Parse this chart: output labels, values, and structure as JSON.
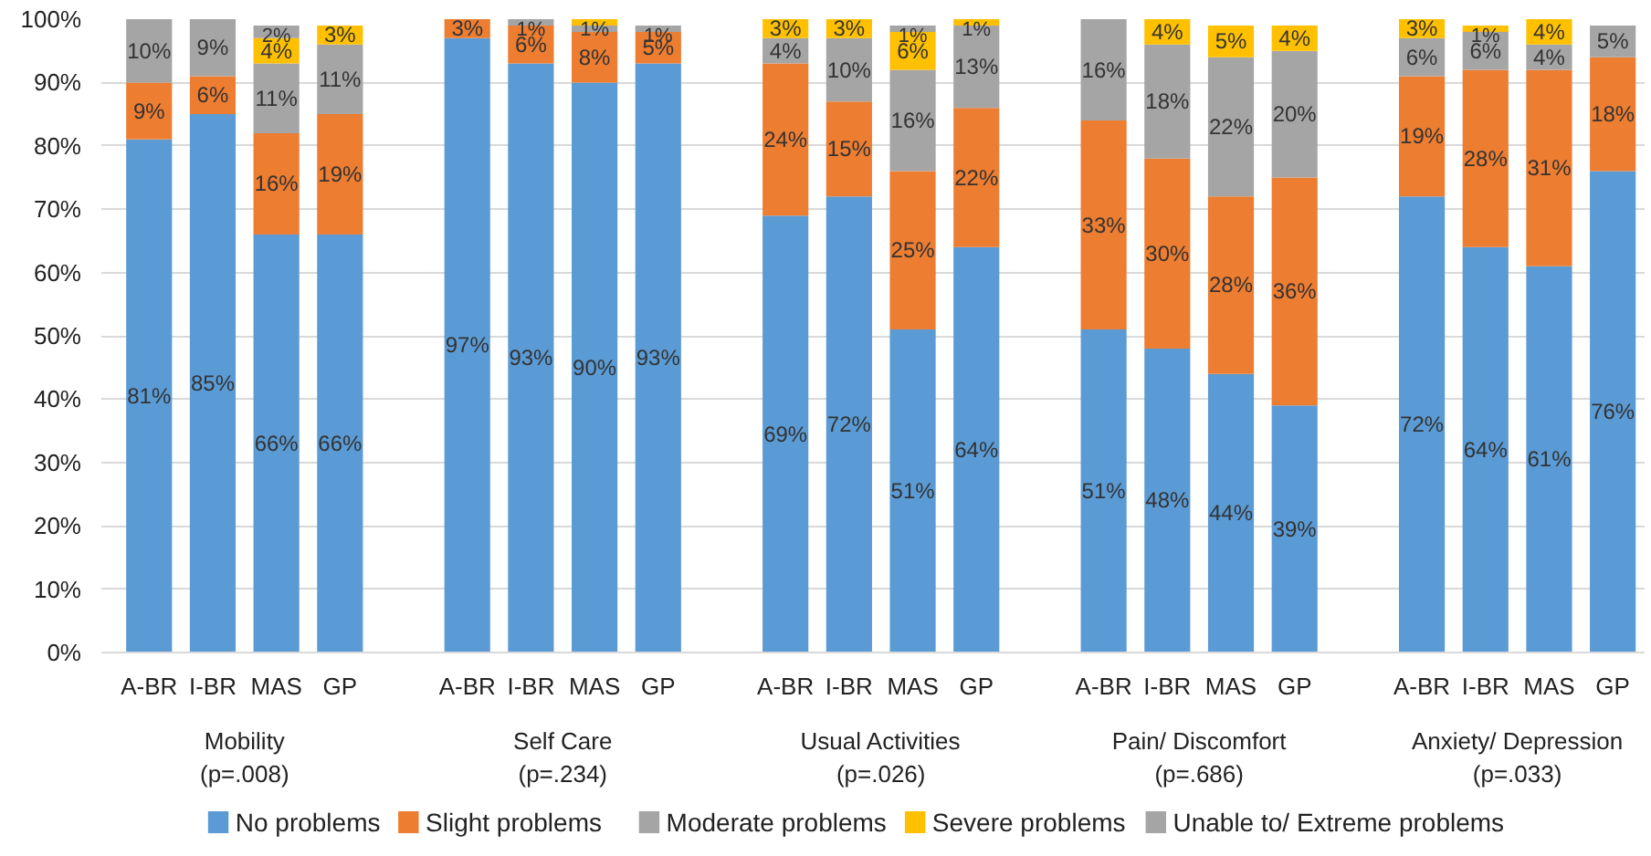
{
  "chart_data": {
    "type": "bar",
    "stacked": true,
    "categories": [
      "A-BR",
      "I-BR",
      "MAS",
      "GP",
      "A-BR",
      "I-BR",
      "MAS",
      "GP",
      "A-BR",
      "I-BR",
      "MAS",
      "GP",
      "A-BR",
      "I-BR",
      "MAS",
      "GP",
      "A-BR",
      "I-BR",
      "MAS",
      "GP"
    ],
    "annotations": [
      "Mobility\n(p=.008)",
      "Self Care\n(p=.234)",
      "Usual Activities\n(p=.026)",
      "Pain/ Discomfort\n(p=.686)",
      "Anxiety/ Depression\n(p=.033)"
    ],
    "series": [
      {
        "name": "No problems",
        "color": "#5b9bd5",
        "values": [
          81,
          85,
          66,
          66,
          97,
          93,
          90,
          93,
          69,
          72,
          51,
          64,
          51,
          48,
          44,
          39,
          72,
          64,
          61,
          76
        ],
        "value_labels": [
          "81%",
          "85%",
          "66%",
          "66%",
          "97%",
          "93%",
          "90%",
          "93%",
          "69%",
          "72%",
          "51%",
          "64%",
          "51%",
          "48%",
          "44%",
          "39%",
          "72%",
          "64%",
          "61%",
          "76%"
        ]
      },
      {
        "name": "Slight problems",
        "color": "#ed7d31",
        "values": [
          9,
          6,
          16,
          19,
          3,
          6,
          8,
          5,
          24,
          15,
          25,
          22,
          33,
          30,
          28,
          36,
          19,
          28,
          31,
          18
        ],
        "value_labels": [
          "9%",
          "6%",
          "16%",
          "19%",
          "3%",
          "6%",
          "8%",
          "5%",
          "24%",
          "15%",
          "25%",
          "22%",
          "33%",
          "30%",
          "28%",
          "36%",
          "19%",
          "28%",
          "31%",
          "18%"
        ]
      },
      {
        "name": "Moderate problems",
        "color": "#a5a5a5",
        "values": [
          10,
          9,
          11,
          11,
          0,
          1,
          1,
          1,
          4,
          10,
          16,
          13,
          16,
          18,
          22,
          20,
          6,
          6,
          4,
          5
        ],
        "value_labels": [
          "10%",
          "9%",
          "11%",
          "11%",
          null,
          "1%",
          null,
          "1%",
          "4%",
          "10%",
          "16%",
          "13%",
          "16%",
          "18%",
          "22%",
          "20%",
          "6%",
          "6%",
          "4%",
          "5%"
        ]
      },
      {
        "name": "Severe problems",
        "color": "#ffc000",
        "values": [
          0,
          0,
          4,
          3,
          0,
          0,
          1,
          0,
          3,
          3,
          6,
          1,
          0,
          4,
          5,
          4,
          3,
          1,
          4,
          0
        ],
        "value_labels": [
          null,
          null,
          "4%",
          "3%",
          null,
          null,
          "1%",
          null,
          "3%",
          "3%",
          "6%",
          "1%",
          null,
          "4%",
          "5%",
          "4%",
          "3%",
          "1%",
          "4%",
          null
        ]
      },
      {
        "name": "Unable to/ Extreme problems",
        "color": "#a5a5a5",
        "values": [
          0,
          0,
          2,
          0,
          0,
          0,
          0,
          0,
          0,
          0,
          1,
          0,
          0,
          0,
          0,
          0,
          0,
          0,
          0,
          0
        ],
        "value_labels": [
          null,
          null,
          "2%",
          null,
          null,
          null,
          null,
          null,
          null,
          null,
          "1%",
          null,
          null,
          null,
          null,
          null,
          null,
          null,
          null,
          null
        ]
      }
    ],
    "ylim": [
      0,
      100
    ],
    "yticks": [
      {
        "value": 0,
        "label": "0%"
      },
      {
        "value": 10,
        "label": "10%"
      },
      {
        "value": 20,
        "label": "20%"
      },
      {
        "value": 30,
        "label": "30%"
      },
      {
        "value": 40,
        "label": "40%"
      },
      {
        "value": 50,
        "label": "50%"
      },
      {
        "value": 60,
        "label": "60%"
      },
      {
        "value": 70,
        "label": "70%"
      },
      {
        "value": 80,
        "label": "80%"
      },
      {
        "value": 90,
        "label": "90%"
      },
      {
        "value": 100,
        "label": "100%"
      }
    ],
    "grid": "y",
    "legend": "bottom"
  }
}
